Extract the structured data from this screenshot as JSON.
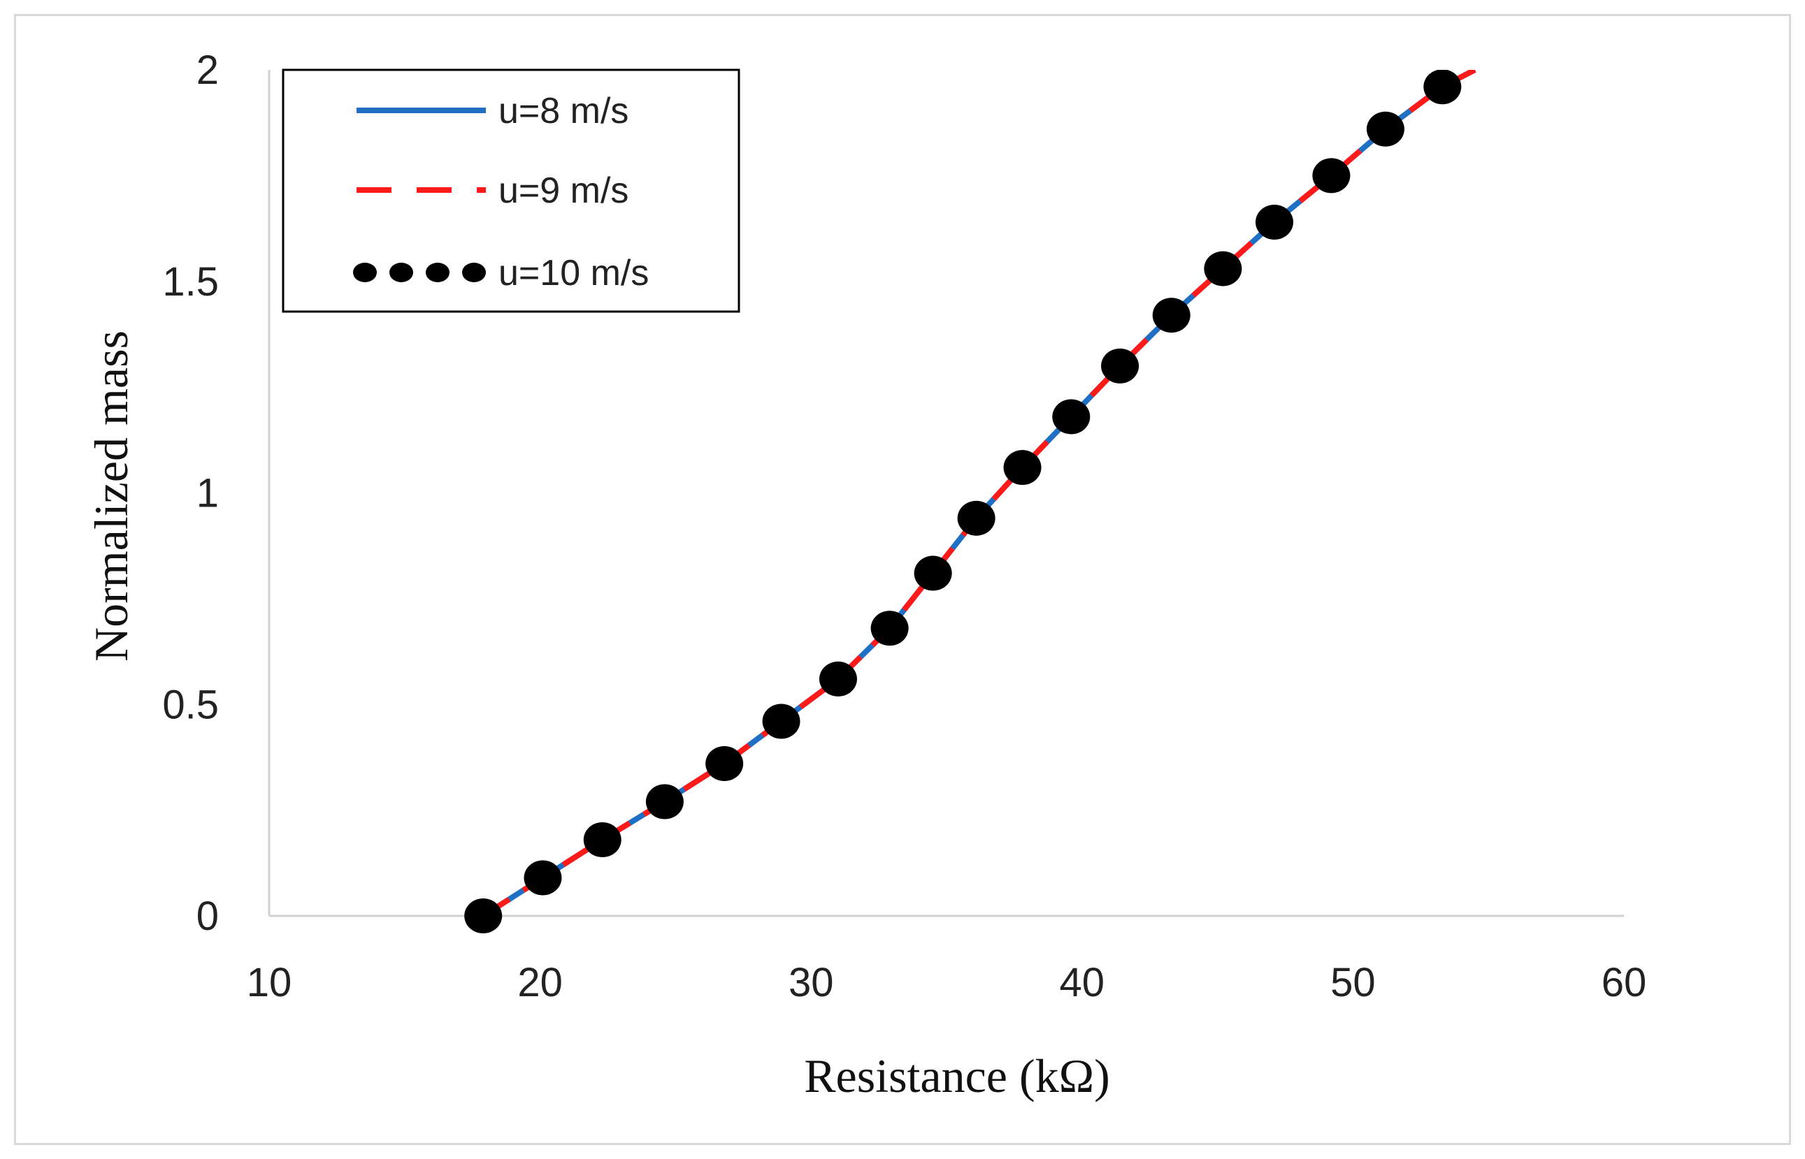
{
  "chart_data": {
    "type": "line",
    "xlabel": "Resistance (kΩ)",
    "ylabel": "Normalized mass",
    "xlim": [
      10,
      60
    ],
    "ylim": [
      0,
      2
    ],
    "xticks": [
      10,
      20,
      30,
      40,
      50,
      60
    ],
    "xtick_labels": [
      "10",
      "20",
      "30",
      "40",
      "50",
      "60"
    ],
    "yticks": [
      0,
      0.5,
      1,
      1.5,
      2
    ],
    "ytick_labels": [
      "0",
      "0.5",
      "1",
      "1.5",
      "2"
    ],
    "grid": false,
    "legend_position": "top-left",
    "series": [
      {
        "name": "u=8 m/s",
        "style": "solid",
        "color": "#1f6fc5",
        "x": [
          17.9,
          20.1,
          22.3,
          24.6,
          26.8,
          28.9,
          31.0,
          32.9,
          34.5,
          36.1,
          37.8,
          39.6,
          41.4,
          43.3,
          45.2,
          47.1,
          49.2,
          51.2,
          53.3,
          54.5
        ],
        "y": [
          0.0,
          0.09,
          0.18,
          0.27,
          0.36,
          0.46,
          0.56,
          0.68,
          0.81,
          0.94,
          1.06,
          1.18,
          1.3,
          1.42,
          1.53,
          1.64,
          1.75,
          1.86,
          1.96,
          2.0
        ]
      },
      {
        "name": "u=9 m/s",
        "style": "dashed",
        "color": "#ff1a1a",
        "x": [
          17.9,
          20.1,
          22.3,
          24.6,
          26.8,
          28.9,
          31.0,
          32.9,
          34.5,
          36.1,
          37.8,
          39.6,
          41.4,
          43.3,
          45.2,
          47.1,
          49.2,
          51.2,
          53.3,
          54.5
        ],
        "y": [
          0.0,
          0.09,
          0.18,
          0.27,
          0.36,
          0.46,
          0.56,
          0.68,
          0.81,
          0.94,
          1.06,
          1.18,
          1.3,
          1.42,
          1.53,
          1.64,
          1.75,
          1.86,
          1.96,
          2.0
        ]
      },
      {
        "name": "u=10 m/s",
        "style": "dotted",
        "color": "#000000",
        "x": [
          17.9,
          20.1,
          22.3,
          24.6,
          26.8,
          28.9,
          31.0,
          32.9,
          34.5,
          36.1,
          37.8,
          39.6,
          41.4,
          43.3,
          45.2,
          47.1,
          49.2,
          51.2,
          53.3
        ],
        "y": [
          0.0,
          0.09,
          0.18,
          0.27,
          0.36,
          0.46,
          0.56,
          0.68,
          0.81,
          0.94,
          1.06,
          1.18,
          1.3,
          1.42,
          1.53,
          1.64,
          1.75,
          1.86,
          1.96
        ]
      }
    ]
  }
}
